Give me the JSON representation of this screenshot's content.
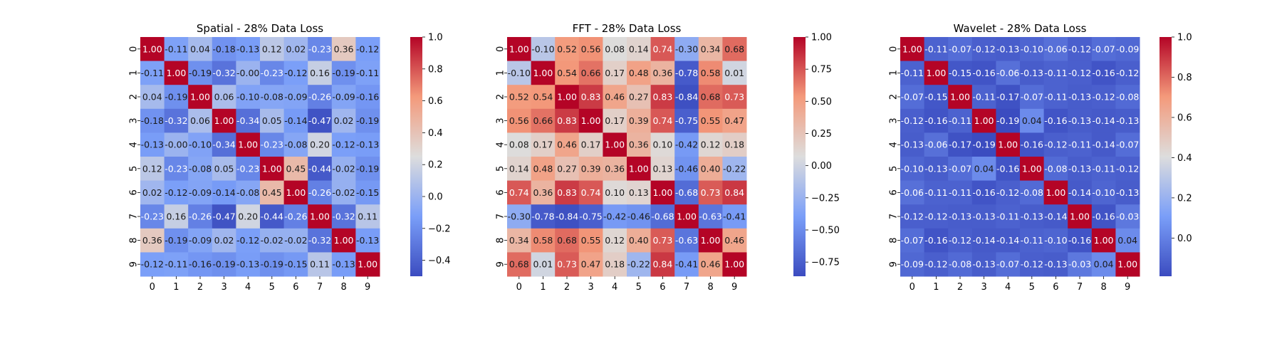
{
  "colors": {
    "low": "#3b4cc0",
    "mid": "#dddddd",
    "high": "#b40426"
  },
  "chart_data": [
    {
      "type": "heatmap",
      "title": "Spatial - 28% Data Loss",
      "x_labels": [
        "0",
        "1",
        "2",
        "3",
        "4",
        "5",
        "6",
        "7",
        "8",
        "9"
      ],
      "y_labels": [
        "0",
        "1",
        "2",
        "3",
        "4",
        "5",
        "6",
        "7",
        "8",
        "9"
      ],
      "colorbar": {
        "vmin": -0.5,
        "vmax": 1.0,
        "ticks": [
          -0.4,
          -0.2,
          0.0,
          0.2,
          0.4,
          0.6,
          0.8,
          1.0
        ],
        "tick_labels": [
          "−0.4",
          "−0.2",
          "0.0",
          "0.2",
          "0.4",
          "0.6",
          "0.8",
          "1.0"
        ]
      },
      "values": [
        [
          1.0,
          -0.11,
          0.04,
          -0.18,
          -0.13,
          0.12,
          0.02,
          -0.23,
          0.36,
          -0.12
        ],
        [
          -0.11,
          1.0,
          -0.19,
          -0.32,
          -0.0,
          -0.23,
          -0.12,
          0.16,
          -0.19,
          -0.11
        ],
        [
          0.04,
          -0.19,
          1.0,
          0.06,
          -0.1,
          -0.08,
          -0.09,
          -0.26,
          -0.09,
          -0.16
        ],
        [
          -0.18,
          -0.32,
          0.06,
          1.0,
          -0.34,
          0.05,
          -0.14,
          -0.47,
          0.02,
          -0.19
        ],
        [
          -0.13,
          -0.0,
          -0.1,
          -0.34,
          1.0,
          -0.23,
          -0.08,
          0.2,
          -0.12,
          -0.13
        ],
        [
          0.12,
          -0.23,
          -0.08,
          0.05,
          -0.23,
          1.0,
          0.45,
          -0.44,
          -0.02,
          -0.19
        ],
        [
          0.02,
          -0.12,
          -0.09,
          -0.14,
          -0.08,
          0.45,
          1.0,
          -0.26,
          -0.02,
          -0.15
        ],
        [
          -0.23,
          0.16,
          -0.26,
          -0.47,
          0.2,
          -0.44,
          -0.26,
          1.0,
          -0.32,
          0.11
        ],
        [
          0.36,
          -0.19,
          -0.09,
          0.02,
          -0.12,
          -0.02,
          -0.02,
          -0.32,
          1.0,
          -0.13
        ],
        [
          -0.12,
          -0.11,
          -0.16,
          -0.19,
          -0.13,
          -0.19,
          -0.15,
          0.11,
          -0.13,
          1.0
        ]
      ]
    },
    {
      "type": "heatmap",
      "title": "FFT - 28% Data Loss",
      "x_labels": [
        "0",
        "1",
        "2",
        "3",
        "4",
        "5",
        "6",
        "7",
        "8",
        "9"
      ],
      "y_labels": [
        "0",
        "1",
        "2",
        "3",
        "4",
        "5",
        "6",
        "7",
        "8",
        "9"
      ],
      "colorbar": {
        "vmin": -0.86,
        "vmax": 1.0,
        "ticks": [
          -0.75,
          -0.5,
          -0.25,
          0.0,
          0.25,
          0.5,
          0.75,
          1.0
        ],
        "tick_labels": [
          "−0.75",
          "−0.50",
          "−0.25",
          "0.00",
          "0.25",
          "0.50",
          "0.75",
          "1.00"
        ]
      },
      "values": [
        [
          1.0,
          -0.1,
          0.52,
          0.56,
          0.08,
          0.14,
          0.74,
          -0.3,
          0.34,
          0.68
        ],
        [
          -0.1,
          1.0,
          0.54,
          0.66,
          0.17,
          0.48,
          0.36,
          -0.78,
          0.58,
          0.01
        ],
        [
          0.52,
          0.54,
          1.0,
          0.83,
          0.46,
          0.27,
          0.83,
          -0.84,
          0.68,
          0.73
        ],
        [
          0.56,
          0.66,
          0.83,
          1.0,
          0.17,
          0.39,
          0.74,
          -0.75,
          0.55,
          0.47
        ],
        [
          0.08,
          0.17,
          0.46,
          0.17,
          1.0,
          0.36,
          0.1,
          -0.42,
          0.12,
          0.18
        ],
        [
          0.14,
          0.48,
          0.27,
          0.39,
          0.36,
          1.0,
          0.13,
          -0.46,
          0.4,
          -0.22
        ],
        [
          0.74,
          0.36,
          0.83,
          0.74,
          0.1,
          0.13,
          1.0,
          -0.68,
          0.73,
          0.84
        ],
        [
          -0.3,
          -0.78,
          -0.84,
          -0.75,
          -0.42,
          -0.46,
          -0.68,
          1.0,
          -0.63,
          -0.41
        ],
        [
          0.34,
          0.58,
          0.68,
          0.55,
          0.12,
          0.4,
          0.73,
          -0.63,
          1.0,
          0.46
        ],
        [
          0.68,
          0.01,
          0.73,
          0.47,
          0.18,
          -0.22,
          0.84,
          -0.41,
          0.46,
          1.0
        ]
      ]
    },
    {
      "type": "heatmap",
      "title": "Wavelet - 28% Data Loss",
      "x_labels": [
        "0",
        "1",
        "2",
        "3",
        "4",
        "5",
        "6",
        "7",
        "8",
        "9"
      ],
      "y_labels": [
        "0",
        "1",
        "2",
        "3",
        "4",
        "5",
        "6",
        "7",
        "8",
        "9"
      ],
      "colorbar": {
        "vmin": -0.19,
        "vmax": 1.0,
        "ticks": [
          0.0,
          0.2,
          0.4,
          0.6,
          0.8,
          1.0
        ],
        "tick_labels": [
          "0.0",
          "0.2",
          "0.4",
          "0.6",
          "0.8",
          "1.0"
        ]
      },
      "values": [
        [
          1.0,
          -0.11,
          -0.07,
          -0.12,
          -0.13,
          -0.1,
          -0.06,
          -0.12,
          -0.07,
          -0.09
        ],
        [
          -0.11,
          1.0,
          -0.15,
          -0.16,
          -0.06,
          -0.13,
          -0.11,
          -0.12,
          -0.16,
          -0.12
        ],
        [
          -0.07,
          -0.15,
          1.0,
          -0.11,
          -0.17,
          -0.07,
          -0.11,
          -0.13,
          -0.12,
          -0.08
        ],
        [
          -0.12,
          -0.16,
          -0.11,
          1.0,
          -0.19,
          0.04,
          -0.16,
          -0.13,
          -0.14,
          -0.13
        ],
        [
          -0.13,
          -0.06,
          -0.17,
          -0.19,
          1.0,
          -0.16,
          -0.12,
          -0.11,
          -0.14,
          -0.07
        ],
        [
          -0.1,
          -0.13,
          -0.07,
          0.04,
          -0.16,
          1.0,
          -0.08,
          -0.13,
          -0.11,
          -0.12
        ],
        [
          -0.06,
          -0.11,
          -0.11,
          -0.16,
          -0.12,
          -0.08,
          1.0,
          -0.14,
          -0.1,
          -0.13
        ],
        [
          -0.12,
          -0.12,
          -0.13,
          -0.13,
          -0.11,
          -0.13,
          -0.14,
          1.0,
          -0.16,
          -0.03
        ],
        [
          -0.07,
          -0.16,
          -0.12,
          -0.14,
          -0.14,
          -0.11,
          -0.1,
          -0.16,
          1.0,
          0.04
        ],
        [
          -0.09,
          -0.12,
          -0.08,
          -0.13,
          -0.07,
          -0.12,
          -0.13,
          -0.03,
          0.04,
          1.0
        ]
      ]
    }
  ]
}
